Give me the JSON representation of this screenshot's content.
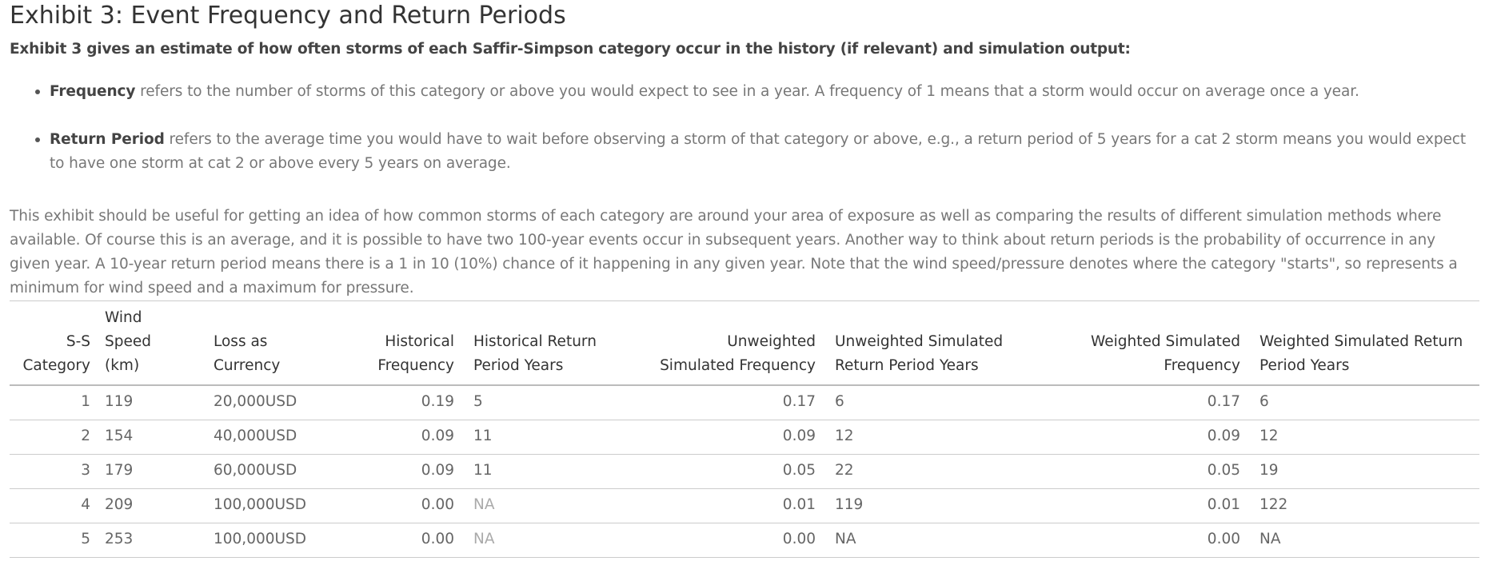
{
  "title": "Exhibit 3: Event Frequency and Return Periods",
  "subtitle": "Exhibit 3 gives an estimate of how often storms of each Saffir-Simpson category occur in the history (if relevant) and simulation output:",
  "bullets": [
    {
      "term": "Frequency",
      "text": " refers to the number of storms of this category or above you would expect to see in a year. A frequency of 1 means that a storm would occur on average once a year."
    },
    {
      "term": "Return Period",
      "text": " refers to the average time you would have to wait before observing a storm of that category or above, e.g., a return period of 5 years for a cat 2 storm means you would expect to have one storm at cat 2 or above every 5 years on average."
    }
  ],
  "paragraph": "This exhibit should be useful for getting an idea of how common storms of each category are around your area of exposure as well as comparing the results of different simulation methods where available. Of course this is an average, and it is possible to have two 100-year events occur in subsequent years. Another way to think about return periods is the probability of occurrence in any given year. A 10-year return period means there is a 1 in 10 (10%) chance of it happening in any given year. Note that the wind speed/pressure denotes where the category \"starts\", so represents a minimum for wind speed and a maximum for pressure.",
  "table": {
    "headers": [
      "S-S Category",
      "Wind Speed (km)",
      "Loss as Currency",
      "Historical Frequency",
      "Historical Return Period Years",
      "Unweighted Simulated Frequency",
      "Unweighted Simulated Return Period Years",
      "Weighted Simulated Frequency",
      "Weighted Simulated Return Period Years"
    ],
    "rows": [
      [
        "1",
        "119",
        "20,000USD",
        "0.19",
        "5",
        "0.17",
        "6",
        "0.17",
        "6"
      ],
      [
        "2",
        "154",
        "40,000USD",
        "0.09",
        "11",
        "0.09",
        "12",
        "0.09",
        "12"
      ],
      [
        "3",
        "179",
        "60,000USD",
        "0.09",
        "11",
        "0.05",
        "22",
        "0.05",
        "19"
      ],
      [
        "4",
        "209",
        "100,000USD",
        "0.00",
        "NA",
        "0.01",
        "119",
        "0.01",
        "122"
      ],
      [
        "5",
        "253",
        "100,000USD",
        "0.00",
        "NA",
        "0.00",
        "NA",
        "0.00",
        "NA"
      ]
    ]
  }
}
